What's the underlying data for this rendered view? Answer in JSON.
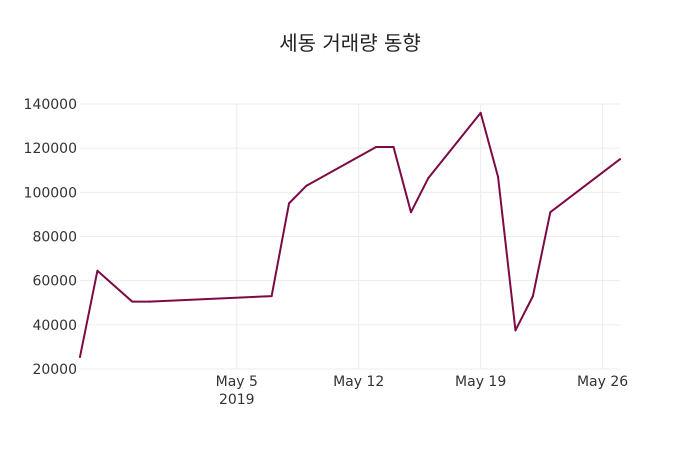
{
  "chart_data": {
    "type": "line",
    "title": "세동 거래량 동향",
    "xlabel": "",
    "ylabel": "",
    "x_range": [
      "2019-04-26",
      "2019-05-27"
    ],
    "ylim": [
      20000,
      140000
    ],
    "y_ticks": [
      20000,
      40000,
      60000,
      80000,
      100000,
      120000,
      140000
    ],
    "y_tick_labels": [
      "20000",
      "40000",
      "60000",
      "80000",
      "100000",
      "120000",
      "140000"
    ],
    "x_ticks": [
      {
        "date": "2019-05-05",
        "label": "May 5",
        "sublabel": "2019"
      },
      {
        "date": "2019-05-12",
        "label": "May 12",
        "sublabel": ""
      },
      {
        "date": "2019-05-19",
        "label": "May 19",
        "sublabel": ""
      },
      {
        "date": "2019-05-26",
        "label": "May 26",
        "sublabel": ""
      }
    ],
    "grid": true,
    "series": [
      {
        "color": "#7b0a45",
        "points": [
          {
            "x": "2019-04-26",
            "y": 25500
          },
          {
            "x": "2019-04-27",
            "y": 64500
          },
          {
            "x": "2019-04-29",
            "y": 50500
          },
          {
            "x": "2019-04-30",
            "y": 50500
          },
          {
            "x": "2019-05-07",
            "y": 53000
          },
          {
            "x": "2019-05-08",
            "y": 95000
          },
          {
            "x": "2019-05-09",
            "y": 103000
          },
          {
            "x": "2019-05-13",
            "y": 120500
          },
          {
            "x": "2019-05-14",
            "y": 120500
          },
          {
            "x": "2019-05-15",
            "y": 91000
          },
          {
            "x": "2019-05-16",
            "y": 106500
          },
          {
            "x": "2019-05-19",
            "y": 136000
          },
          {
            "x": "2019-05-20",
            "y": 107000
          },
          {
            "x": "2019-05-21",
            "y": 37500
          },
          {
            "x": "2019-05-22",
            "y": 53000
          },
          {
            "x": "2019-05-23",
            "y": 91000
          },
          {
            "x": "2019-05-27",
            "y": 115000
          }
        ]
      }
    ]
  }
}
